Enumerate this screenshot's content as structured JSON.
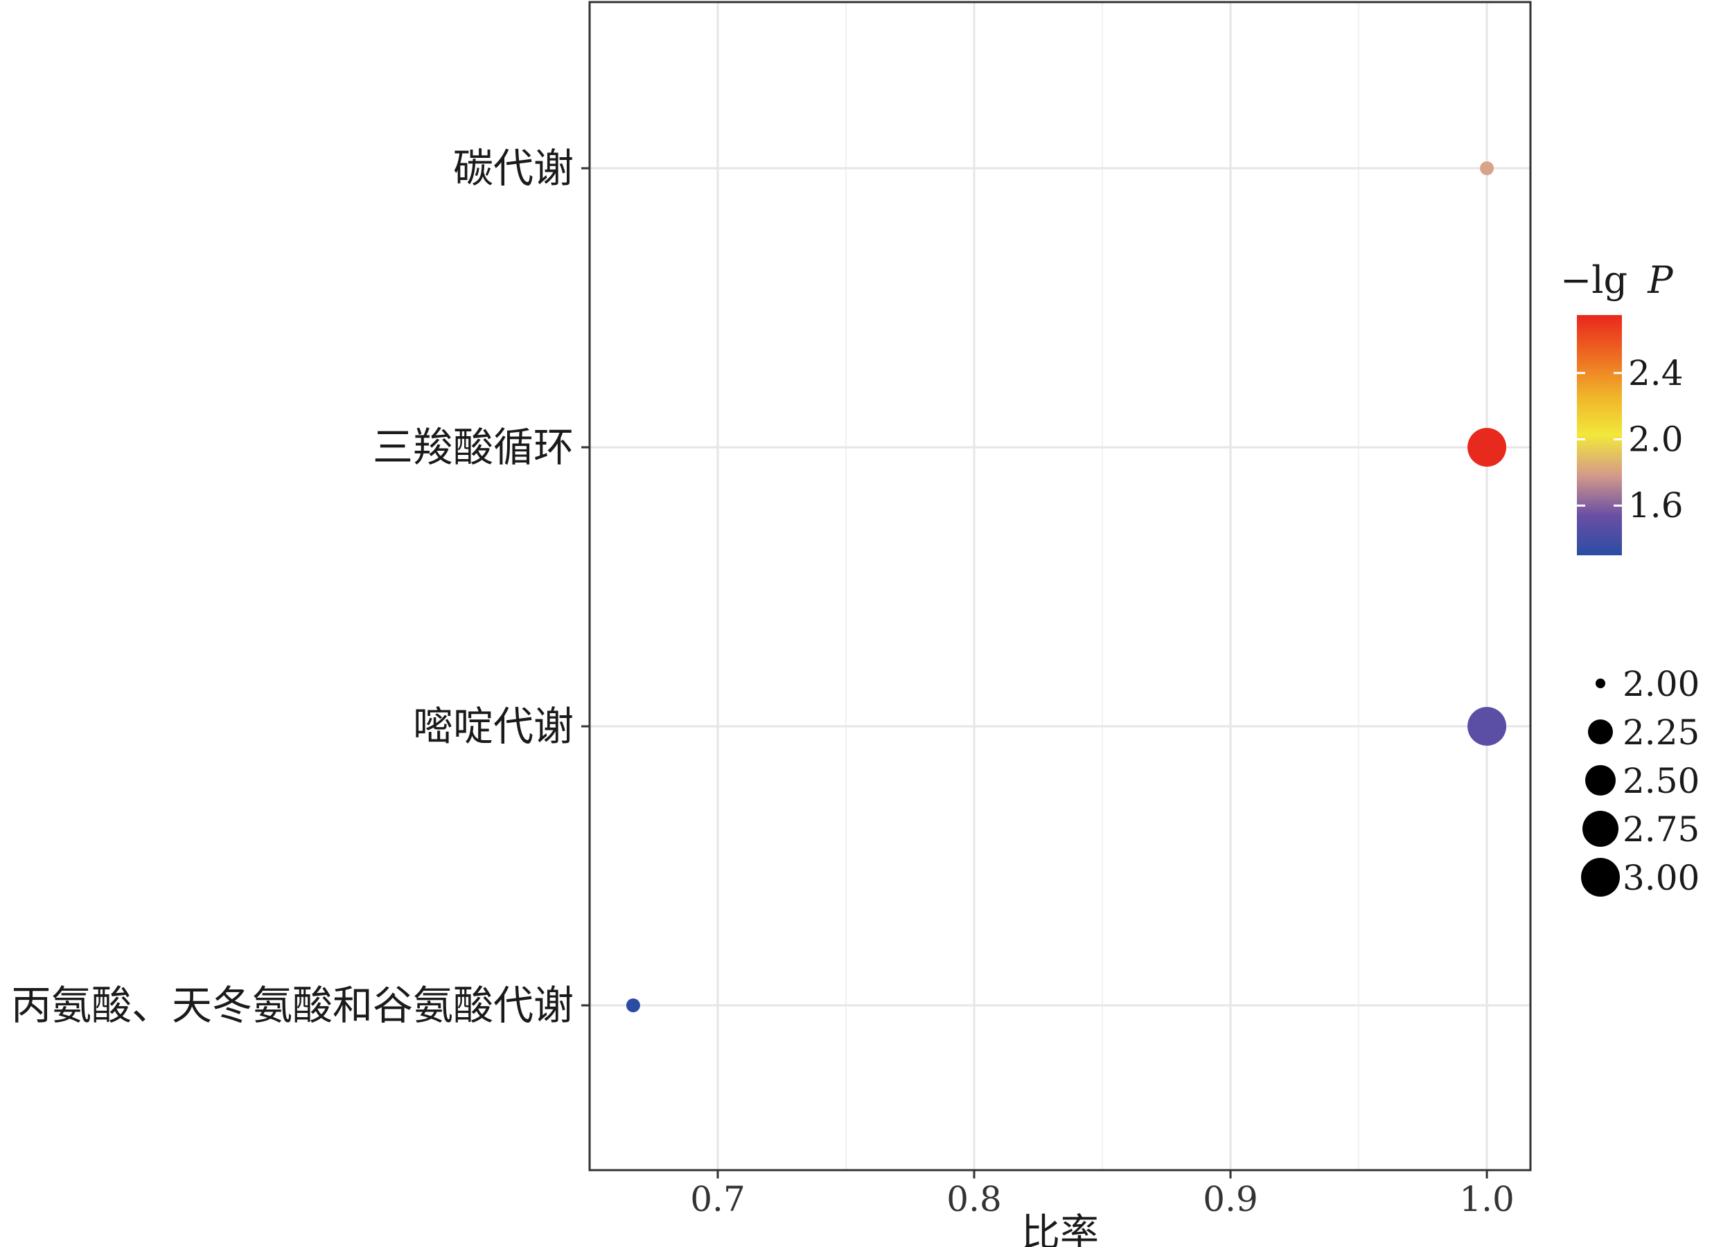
{
  "chart_data": {
    "type": "scatter",
    "xlabel": "比率",
    "ylabel": "",
    "xlim": [
      0.65,
      1.017
    ],
    "x_ticks": [
      0.7,
      0.8,
      0.9,
      1.0
    ],
    "x_tick_labels": [
      "0.7",
      "0.8",
      "0.9",
      "1.0"
    ],
    "categories": [
      "碳代谢",
      "三羧酸循环",
      "嘧啶代谢",
      "丙氨酸、天冬氨酸和谷氨酸代谢"
    ],
    "points": [
      {
        "category": "碳代谢",
        "ratio": 1.0,
        "neg_lg_p": 1.9,
        "count": 2.0,
        "color": "#d9a38a"
      },
      {
        "category": "三羧酸循环",
        "ratio": 1.0,
        "neg_lg_p": 2.75,
        "count": 3.0,
        "color": "#e8291d"
      },
      {
        "category": "嘧啶代谢",
        "ratio": 1.0,
        "neg_lg_p": 1.5,
        "count": 3.0,
        "color": "#5b4ea5"
      },
      {
        "category": "丙氨酸、天冬氨酸和谷氨酸代谢",
        "ratio": 0.667,
        "neg_lg_p": 1.3,
        "count": 2.0,
        "color": "#2a4da3"
      }
    ],
    "grid": true,
    "color_legend": {
      "title_prefix": "−lg",
      "title_var": "P",
      "min": 1.3,
      "max": 2.75,
      "ticks": [
        1.6,
        2.0,
        2.4
      ],
      "tick_labels": [
        "1.6",
        "2.0",
        "2.4"
      ],
      "gradient": [
        "#2a4da3",
        "#6a4fa5",
        "#d49a8a",
        "#f2e83a",
        "#f0b22a",
        "#ee6a22",
        "#e8281c"
      ],
      "placement": "right"
    },
    "size_legend": {
      "values": [
        2.0,
        2.25,
        2.5,
        2.75,
        3.0
      ],
      "labels": [
        "2.00",
        "2.25",
        "2.50",
        "2.75",
        "3.00"
      ],
      "placement": "right"
    }
  }
}
